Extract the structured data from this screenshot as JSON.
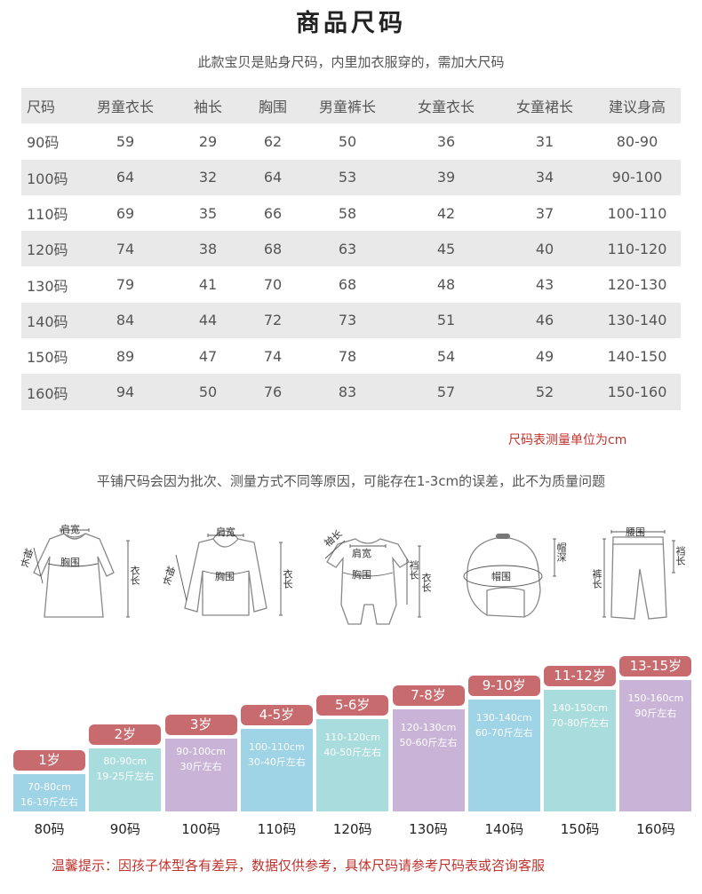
{
  "page": {
    "title": "商品尺码",
    "subtitle": "此款宝贝是贴身尺码，内里加衣服穿的，需加大尺码",
    "unit_note": "尺码表测量单位为cm",
    "flat_note": "平铺尺码会因为批次、测量方式不同等原因，可能存在1-3cm的误差，此不为质量问题",
    "warning": "温馨提示：因孩子体型各有差异，数据仅供参考，具体尺码请参考尺码表或咨询客服"
  },
  "size_table": {
    "headers": [
      "尺码",
      "男童衣长",
      "袖长",
      "胸围",
      "男童裤长",
      "女童衣长",
      "女童裙长",
      "建议身高"
    ],
    "rows": [
      [
        "90码",
        "59",
        "29",
        "62",
        "50",
        "36",
        "31",
        "80-90"
      ],
      [
        "100码",
        "64",
        "32",
        "64",
        "53",
        "39",
        "34",
        "90-100"
      ],
      [
        "110码",
        "69",
        "35",
        "66",
        "58",
        "42",
        "37",
        "100-110"
      ],
      [
        "120码",
        "74",
        "38",
        "68",
        "63",
        "45",
        "40",
        "110-120"
      ],
      [
        "130码",
        "79",
        "41",
        "70",
        "68",
        "48",
        "43",
        "120-130"
      ],
      [
        "140码",
        "84",
        "44",
        "72",
        "73",
        "51",
        "46",
        "130-140"
      ],
      [
        "150码",
        "89",
        "47",
        "74",
        "78",
        "54",
        "49",
        "140-150"
      ],
      [
        "160码",
        "94",
        "50",
        "76",
        "83",
        "57",
        "52",
        "150-160"
      ]
    ]
  },
  "diagrams": {
    "dress": {
      "shoulder": "肩宽",
      "sleeve": "袖长",
      "chest": "胸围",
      "length": "衣长"
    },
    "hoodie": {
      "shoulder": "肩宽",
      "sleeve": "袖长",
      "chest": "胸围",
      "length": "衣长"
    },
    "romper": {
      "sleeve": "袖长",
      "shoulder": "肩宽",
      "chest": "胸围",
      "crotch": "裆长",
      "length": "衣长"
    },
    "hat": {
      "circumference": "帽围",
      "depth": "帽深"
    },
    "pants": {
      "waist": "腰围",
      "length": "裤长",
      "crotch": "裆长"
    }
  },
  "age_chart": [
    {
      "age": "1岁",
      "height": "70-80cm",
      "weight": "16-19斤左右",
      "size": "80码",
      "color": "#9fd3e6"
    },
    {
      "age": "2岁",
      "height": "80-90cm",
      "weight": "19-25斤左右",
      "size": "90码",
      "color": "#a9dcdc"
    },
    {
      "age": "3岁",
      "height": "90-100cm",
      "weight": "30斤左右",
      "size": "100码",
      "color": "#c9b4d8"
    },
    {
      "age": "4-5岁",
      "height": "100-110cm",
      "weight": "30-40斤左右",
      "size": "110码",
      "color": "#9fd3e6"
    },
    {
      "age": "5-6岁",
      "height": "110-120cm",
      "weight": "40-50斤左右",
      "size": "120码",
      "color": "#a9dcdc"
    },
    {
      "age": "7-8岁",
      "height": "120-130cm",
      "weight": "50-60斤左右",
      "size": "130码",
      "color": "#c9b4d8"
    },
    {
      "age": "9-10岁",
      "height": "130-140cm",
      "weight": "60-70斤左右",
      "size": "140码",
      "color": "#9fd3e6"
    },
    {
      "age": "11-12岁",
      "height": "140-150cm",
      "weight": "70-80斤左右",
      "size": "150码",
      "color": "#a9dcdc"
    },
    {
      "age": "13-15岁",
      "height": "150-160cm",
      "weight": "90斤左右",
      "size": "160码",
      "color": "#c9b4d8"
    }
  ]
}
